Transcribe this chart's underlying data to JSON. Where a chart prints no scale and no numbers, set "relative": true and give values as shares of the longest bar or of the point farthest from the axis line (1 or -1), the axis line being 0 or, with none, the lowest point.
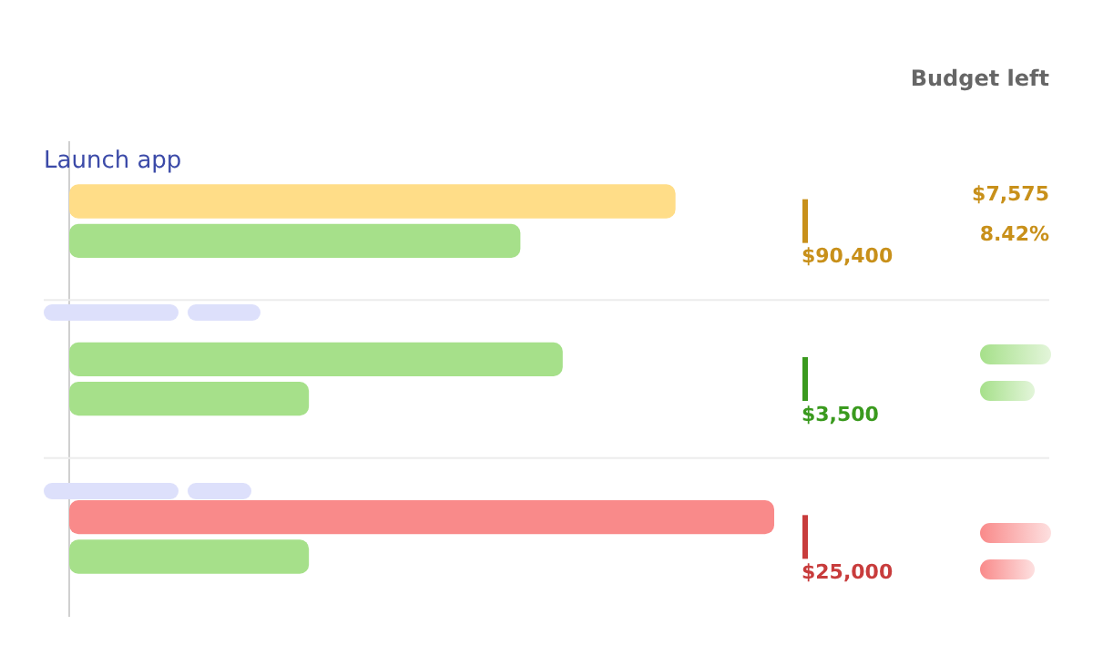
{
  "chart_data": {
    "type": "bar",
    "orientation": "horizontal",
    "relative": true,
    "categories": [
      "Launch app",
      null,
      null
    ],
    "series": [
      {
        "colors": [
          "#ffdd88",
          "#a6e08a",
          "#f98a8a"
        ],
        "values": [
          0.86,
          0.7,
          1
        ]
      },
      {
        "color": "#a6e08a",
        "values": [
          0.64,
          0.34,
          0.34
        ]
      }
    ],
    "annotations": [
      "Budget left",
      "$90,400",
      "$7,575",
      "8.42%",
      "$3,500",
      "$25,000"
    ]
  }
}
